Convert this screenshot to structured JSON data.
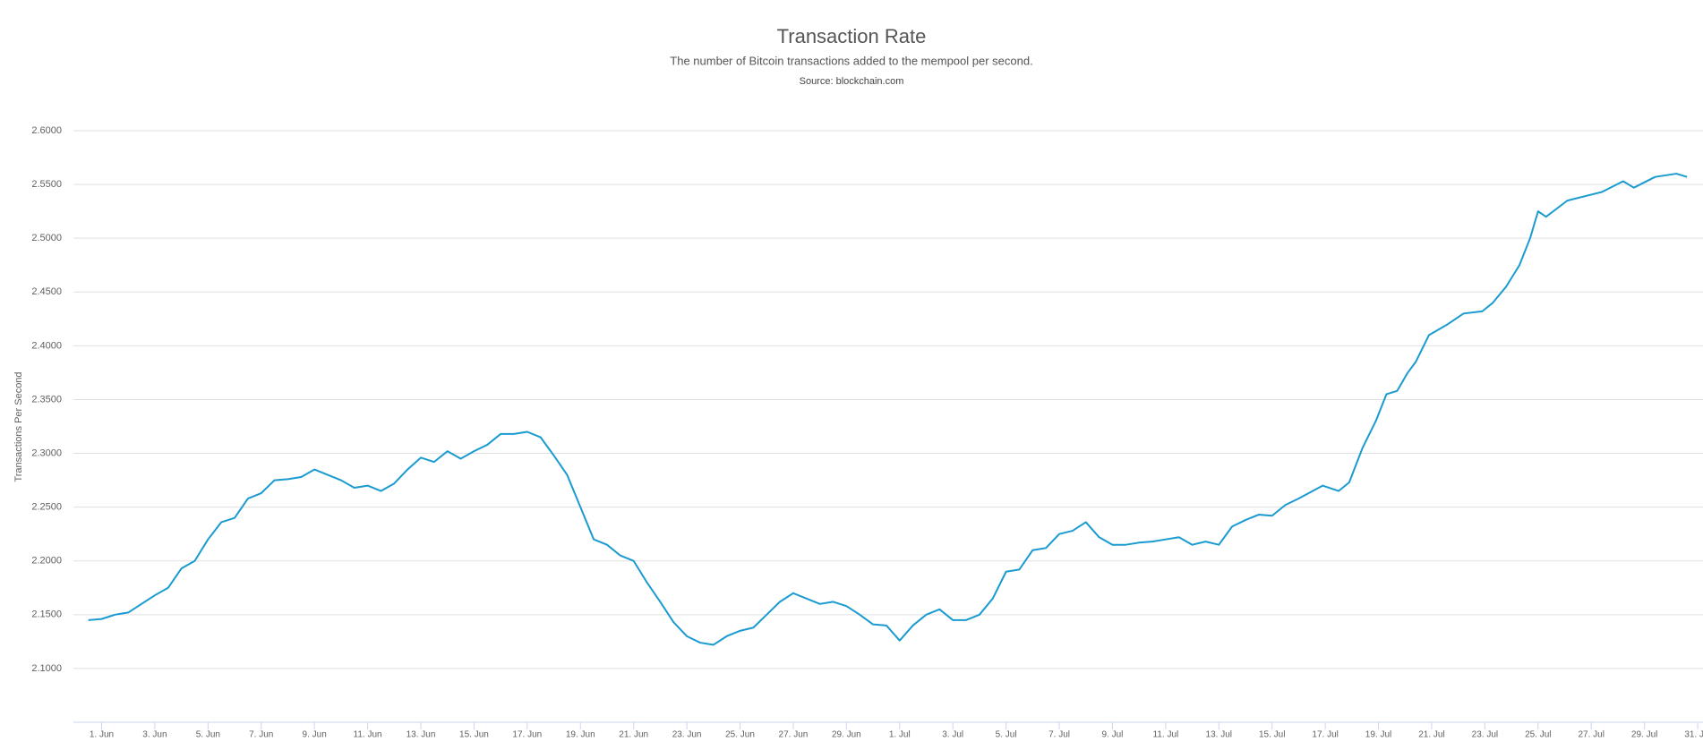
{
  "chart_data": {
    "type": "line",
    "title": "Transaction Rate",
    "subtitle": "The number of Bitcoin transactions added to the mempool per second.",
    "source": "Source: blockchain.com",
    "y_label": "Transactions Per Second",
    "x": [
      -0.5,
      0,
      0.5,
      1,
      1.5,
      2,
      2.5,
      3,
      3.5,
      4,
      4.5,
      5,
      5.5,
      6,
      6.5,
      7,
      7.5,
      8,
      8.5,
      9,
      9.5,
      10,
      10.5,
      11,
      11.5,
      12,
      12.5,
      13,
      13.5,
      14,
      14.5,
      15,
      15.5,
      16,
      16.5,
      17,
      17.5,
      18,
      18.5,
      19,
      19.5,
      20,
      20.5,
      21,
      21.5,
      22,
      22.5,
      23,
      23.5,
      24,
      24.5,
      25,
      25.5,
      26,
      26.5,
      27,
      27.5,
      28,
      28.5,
      29,
      29.5,
      30,
      30.5,
      31,
      31.5,
      32,
      32.5,
      33,
      33.5,
      34,
      34.5,
      35,
      35.5,
      36,
      36.5,
      37,
      37.5,
      38,
      38.5,
      39,
      39.5,
      40,
      40.5,
      41,
      41.5,
      42,
      42.5,
      43,
      43.5,
      44,
      44.5,
      45,
      45.3,
      45.9,
      46.5,
      46.9,
      47.4,
      47.9,
      48.3,
      48.7,
      49.1,
      49.4,
      49.9,
      50.6,
      51.2,
      51.9,
      52.3,
      52.8,
      53.3,
      53.7,
      54,
      54.3,
      55.1,
      56.4,
      57.2,
      57.6,
      58.4,
      59.2,
      59.6
    ],
    "series": [
      {
        "name": "Transactions Per Second",
        "color": "#1a9bd0",
        "values": [
          2.145,
          2.146,
          2.15,
          2.152,
          2.16,
          2.168,
          2.175,
          2.193,
          2.2,
          2.22,
          2.236,
          2.24,
          2.258,
          2.263,
          2.275,
          2.276,
          2.278,
          2.285,
          2.28,
          2.275,
          2.268,
          2.27,
          2.265,
          2.272,
          2.285,
          2.296,
          2.292,
          2.302,
          2.295,
          2.302,
          2.308,
          2.318,
          2.318,
          2.32,
          2.315,
          2.298,
          2.28,
          2.25,
          2.22,
          2.215,
          2.205,
          2.2,
          2.18,
          2.162,
          2.143,
          2.13,
          2.124,
          2.122,
          2.13,
          2.135,
          2.138,
          2.15,
          2.162,
          2.17,
          2.165,
          2.16,
          2.162,
          2.158,
          2.15,
          2.141,
          2.14,
          2.126,
          2.14,
          2.15,
          2.155,
          2.145,
          2.145,
          2.15,
          2.165,
          2.19,
          2.192,
          2.21,
          2.212,
          2.225,
          2.228,
          2.236,
          2.222,
          2.215,
          2.215,
          2.217,
          2.218,
          2.22,
          2.222,
          2.215,
          2.218,
          2.215,
          2.232,
          2.238,
          2.243,
          2.242,
          2.252,
          2.258,
          2.262,
          2.27,
          2.265,
          2.273,
          2.305,
          2.33,
          2.355,
          2.358,
          2.375,
          2.385,
          2.41,
          2.42,
          2.43,
          2.432,
          2.44,
          2.455,
          2.475,
          2.5,
          2.525,
          2.52,
          2.535,
          2.543,
          2.553,
          2.547,
          2.557,
          2.56,
          2.557
        ]
      }
    ],
    "xlim": [
      -1.06,
      60.2
    ],
    "xticks": [
      {
        "value": 0,
        "label": "1. Jun"
      },
      {
        "value": 2,
        "label": "3. Jun"
      },
      {
        "value": 4,
        "label": "5. Jun"
      },
      {
        "value": 6,
        "label": "7. Jun"
      },
      {
        "value": 8,
        "label": "9. Jun"
      },
      {
        "value": 10,
        "label": "11. Jun"
      },
      {
        "value": 12,
        "label": "13. Jun"
      },
      {
        "value": 14,
        "label": "15. Jun"
      },
      {
        "value": 16,
        "label": "17. Jun"
      },
      {
        "value": 18,
        "label": "19. Jun"
      },
      {
        "value": 20,
        "label": "21. Jun"
      },
      {
        "value": 22,
        "label": "23. Jun"
      },
      {
        "value": 24,
        "label": "25. Jun"
      },
      {
        "value": 26,
        "label": "27. Jun"
      },
      {
        "value": 28,
        "label": "29. Jun"
      },
      {
        "value": 30,
        "label": "1. Jul"
      },
      {
        "value": 32,
        "label": "3. Jul"
      },
      {
        "value": 34,
        "label": "5. Jul"
      },
      {
        "value": 36,
        "label": "7. Jul"
      },
      {
        "value": 38,
        "label": "9. Jul"
      },
      {
        "value": 40,
        "label": "11. Jul"
      },
      {
        "value": 42,
        "label": "13. Jul"
      },
      {
        "value": 44,
        "label": "15. Jul"
      },
      {
        "value": 46,
        "label": "17. Jul"
      },
      {
        "value": 48,
        "label": "19. Jul"
      },
      {
        "value": 50,
        "label": "21. Jul"
      },
      {
        "value": 52,
        "label": "23. Jul"
      },
      {
        "value": 54,
        "label": "25. Jul"
      },
      {
        "value": 56,
        "label": "27. Jul"
      },
      {
        "value": 58,
        "label": "29. Jul"
      },
      {
        "value": 60,
        "label": "31. Jul"
      }
    ],
    "ylim": [
      2.05,
      2.6
    ],
    "yticks": [
      {
        "value": 2.1,
        "label": "2.1000"
      },
      {
        "value": 2.15,
        "label": "2.1500"
      },
      {
        "value": 2.2,
        "label": "2.2000"
      },
      {
        "value": 2.25,
        "label": "2.2500"
      },
      {
        "value": 2.3,
        "label": "2.3000"
      },
      {
        "value": 2.35,
        "label": "2.3500"
      },
      {
        "value": 2.4,
        "label": "2.4000"
      },
      {
        "value": 2.45,
        "label": "2.4500"
      },
      {
        "value": 2.5,
        "label": "2.5000"
      },
      {
        "value": 2.55,
        "label": "2.5500"
      },
      {
        "value": 2.6,
        "label": "2.6000"
      }
    ],
    "grid": true
  }
}
